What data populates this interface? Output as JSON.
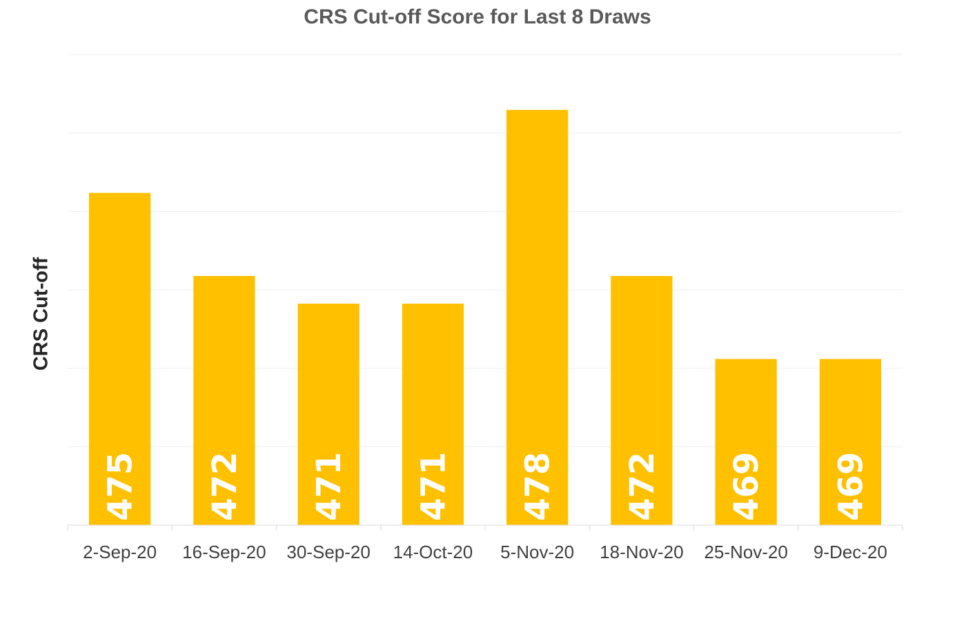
{
  "chart_data": {
    "type": "bar",
    "title": "CRS Cut-off Score for Last 8 Draws",
    "xlabel": "",
    "ylabel": "CRS Cut-off",
    "categories": [
      "2-Sep-20",
      "16-Sep-20",
      "30-Sep-20",
      "14-Oct-20",
      "5-Nov-20",
      "18-Nov-20",
      "25-Nov-20",
      "9-Dec-20"
    ],
    "values": [
      475,
      472,
      471,
      471,
      478,
      472,
      469,
      469
    ],
    "ylim": [
      463,
      480
    ],
    "grid": true,
    "legend": "none",
    "data_labels": "inside-base-rotated",
    "colors": {
      "bar": "#FFC000",
      "label": "#FFFFFF",
      "grid": "#EEEEEE",
      "axis": "#D9D9D9",
      "tick_text": "#404040"
    }
  }
}
